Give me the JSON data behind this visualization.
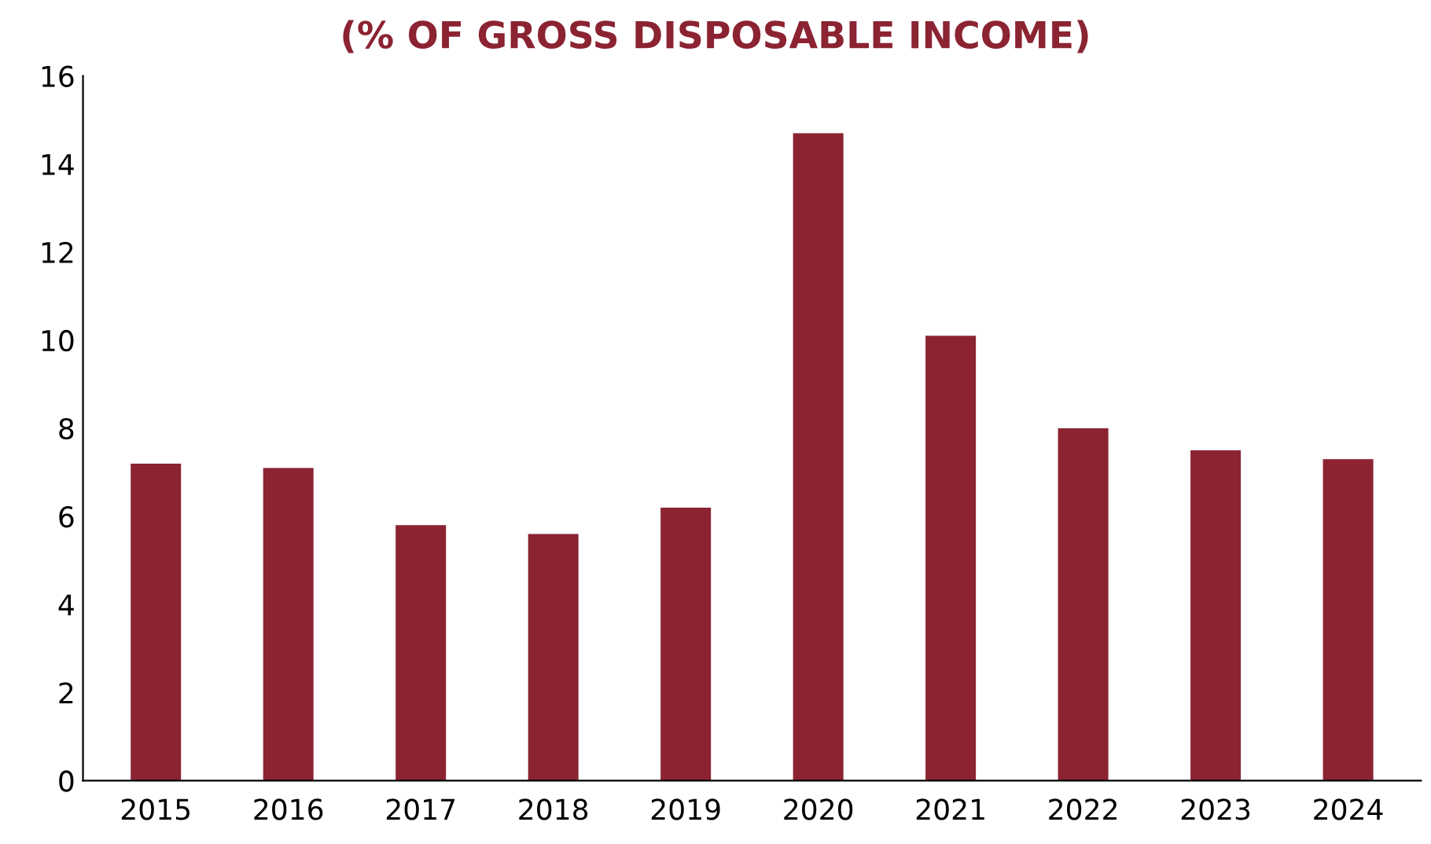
{
  "chart_data": {
    "type": "bar",
    "title": "(% OF GROSS DISPOSABLE INCOME)",
    "categories": [
      "2015",
      "2016",
      "2017",
      "2018",
      "2019",
      "2020",
      "2021",
      "2022",
      "2023",
      "2024"
    ],
    "values": [
      7.2,
      7.1,
      5.8,
      5.6,
      6.2,
      14.7,
      10.1,
      8.0,
      7.5,
      7.3
    ],
    "color": "#8b2332",
    "ylim": [
      0,
      16
    ],
    "yticks": [
      0,
      2,
      4,
      6,
      8,
      10,
      12,
      14,
      16
    ],
    "grid": false
  }
}
